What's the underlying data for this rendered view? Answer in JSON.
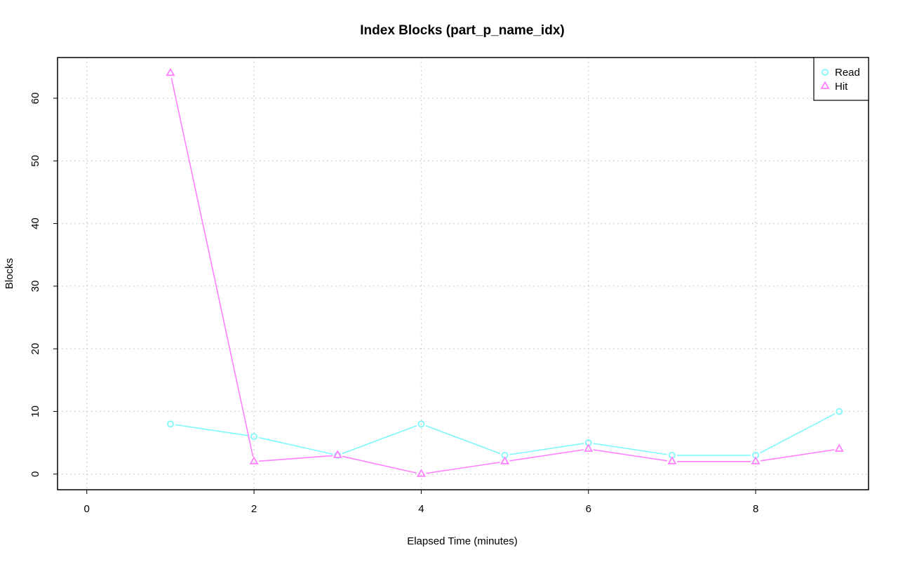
{
  "chart_data": {
    "type": "line",
    "title": "Index Blocks (part_p_name_idx)",
    "xlabel": "Elapsed Time (minutes)",
    "ylabel": "Blocks",
    "xlim": [
      -0.35,
      9.35
    ],
    "ylim": [
      -2.5,
      66.5
    ],
    "x_ticks": [
      0,
      2,
      4,
      6,
      8
    ],
    "y_ticks": [
      0,
      10,
      20,
      30,
      40,
      50,
      60
    ],
    "grid": true,
    "legend_position": "top-right",
    "x": [
      1,
      2,
      3,
      4,
      5,
      6,
      7,
      8,
      9
    ],
    "series": [
      {
        "name": "Read",
        "color": "#7ff8fb",
        "marker": "circle",
        "values": [
          8,
          6,
          3,
          8,
          3,
          5,
          3,
          3,
          10
        ]
      },
      {
        "name": "Hit",
        "color": "#ff80ff",
        "marker": "triangle",
        "values": [
          64,
          2,
          3,
          0,
          2,
          4,
          2,
          2,
          4
        ]
      }
    ]
  }
}
